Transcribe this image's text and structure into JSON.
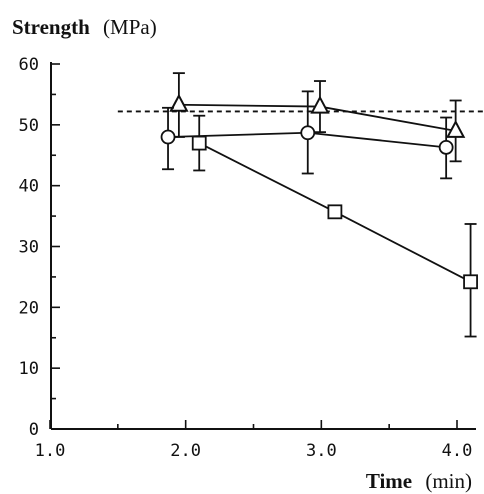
{
  "chart_data": {
    "type": "line",
    "ylabel_bold": "Strength",
    "ylabel_unit": "(MPa)",
    "xlabel_bold": "Time",
    "xlabel_unit": "(min)",
    "xlim": [
      1.0,
      4.15
    ],
    "ylim": [
      0,
      60
    ],
    "x_ticks": [
      "1.0",
      "2.0",
      "3.0",
      "4.0"
    ],
    "y_ticks": [
      "0",
      "10",
      "20",
      "30",
      "40",
      "50",
      "60"
    ],
    "reference_line": {
      "y": 52.2,
      "x_range": [
        1.5,
        4.22
      ],
      "style": "dashed"
    },
    "series": [
      {
        "marker": "triangle",
        "x": [
          1.95,
          2.99,
          3.99
        ],
        "y": [
          53.3,
          53.0,
          49.0
        ],
        "err_low": [
          48.0,
          48.8,
          44.0
        ],
        "err_high": [
          58.5,
          57.2,
          54.0
        ]
      },
      {
        "marker": "circle",
        "x": [
          1.87,
          2.9,
          3.92
        ],
        "y": [
          48.0,
          48.7,
          46.3
        ],
        "err_low": [
          42.7,
          42.0,
          41.2
        ],
        "err_high": [
          52.8,
          55.5,
          51.2
        ]
      },
      {
        "marker": "square",
        "x": [
          2.1,
          3.1,
          4.1
        ],
        "y": [
          47.0,
          35.7,
          24.2
        ],
        "err_low": [
          42.5,
          34.7,
          15.2
        ],
        "err_high": [
          51.5,
          36.5,
          33.7
        ]
      }
    ]
  }
}
